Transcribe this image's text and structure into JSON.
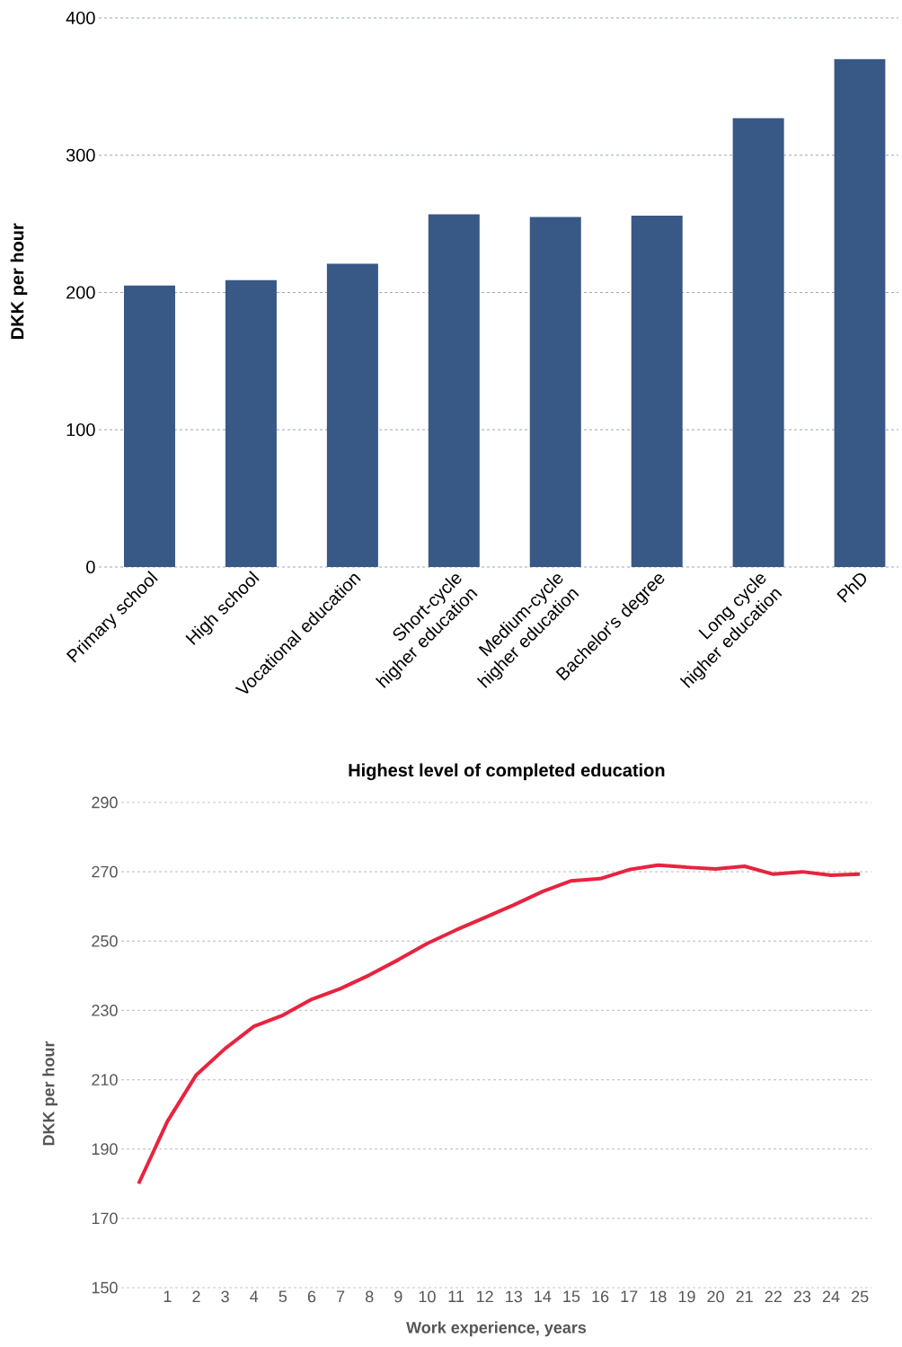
{
  "chart_data": [
    {
      "type": "bar",
      "xlabel": "Highest level of completed education",
      "ylabel": "DKK per hour",
      "categories": [
        "Primary school",
        "High school",
        "Vocational education",
        "Short-cycle higher education",
        "Medium-cycle higher education",
        "Bachelor's degree",
        "Long cycle higher education",
        "PhD"
      ],
      "values": [
        205,
        209,
        221,
        257,
        255,
        256,
        327,
        370
      ],
      "color": "#385885",
      "ylim": [
        0,
        400
      ],
      "yticks": [
        0,
        100,
        200,
        300,
        400
      ],
      "grid": "y"
    },
    {
      "type": "line",
      "xlabel": "Work experience, years",
      "ylabel": "DKK per hour",
      "x": [
        0,
        1,
        2,
        3,
        4,
        5,
        6,
        7,
        8,
        9,
        10,
        11,
        12,
        13,
        14,
        15,
        16,
        17,
        18,
        19,
        20,
        21,
        22,
        23,
        24,
        25
      ],
      "values": [
        180,
        198,
        211.4,
        219,
        225.4,
        228.6,
        233.2,
        236.3,
        240.2,
        244.6,
        249.3,
        253.2,
        256.8,
        260.4,
        264.3,
        267.4,
        268,
        270.6,
        271.9,
        271.3,
        270.8,
        271.6,
        269.3,
        270,
        269,
        269.3
      ],
      "color": "#e8233f",
      "line_style": "solid",
      "xlim": [
        -0.6,
        25.4
      ],
      "xticks": [
        1,
        2,
        3,
        4,
        5,
        6,
        7,
        8,
        9,
        10,
        11,
        12,
        13,
        14,
        15,
        16,
        17,
        18,
        19,
        20,
        21,
        22,
        23,
        24,
        25
      ],
      "ylim": [
        150,
        290
      ],
      "yticks": [
        150,
        170,
        190,
        210,
        230,
        250,
        270,
        290
      ],
      "grid": "y"
    }
  ]
}
